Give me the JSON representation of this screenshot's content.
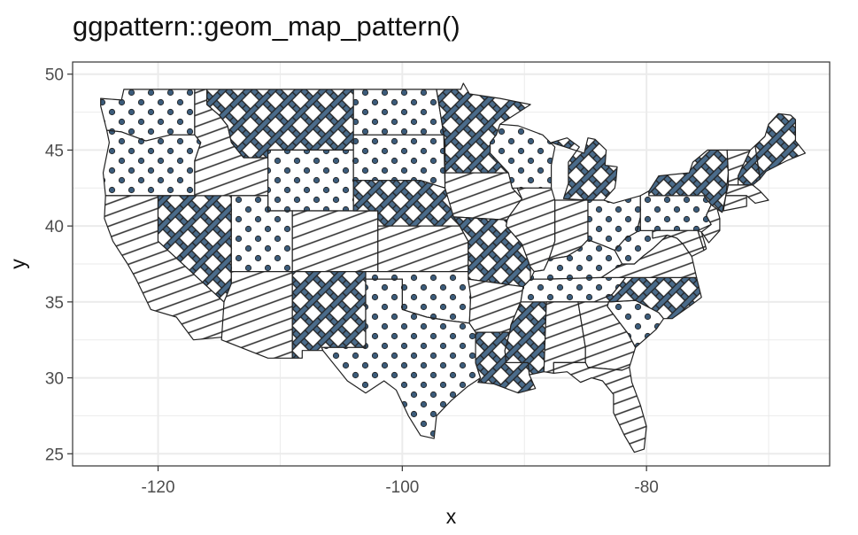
{
  "title": "ggpattern::geom_map_pattern()",
  "x_label": "x",
  "y_label": "y",
  "x_ticks": [
    {
      "value": -120,
      "label": "-120"
    },
    {
      "value": -100,
      "label": "-100"
    },
    {
      "value": -80,
      "label": "-80"
    }
  ],
  "y_ticks": [
    {
      "value": 25,
      "label": "25"
    },
    {
      "value": 30,
      "label": "30"
    },
    {
      "value": 35,
      "label": "35"
    },
    {
      "value": 40,
      "label": "40"
    },
    {
      "value": 45,
      "label": "45"
    },
    {
      "value": 50,
      "label": "50"
    }
  ],
  "x_range": [
    -127,
    -65
  ],
  "y_range": [
    24.2,
    50.8
  ],
  "grid": true,
  "colors": {
    "fill": "#ffffff",
    "pattern_fill": "#4a6b8a",
    "outline": "#222222",
    "panel_border": "#333333",
    "grid": "#ebebeb"
  },
  "patterns": [
    "stripe",
    "crosshatch",
    "circle",
    "none"
  ],
  "states": [
    {
      "name": "washington",
      "pattern": "circle"
    },
    {
      "name": "oregon",
      "pattern": "circle"
    },
    {
      "name": "california",
      "pattern": "stripe"
    },
    {
      "name": "nevada",
      "pattern": "crosshatch"
    },
    {
      "name": "idaho",
      "pattern": "stripe"
    },
    {
      "name": "montana",
      "pattern": "crosshatch"
    },
    {
      "name": "wyoming",
      "pattern": "circle"
    },
    {
      "name": "utah",
      "pattern": "circle"
    },
    {
      "name": "arizona",
      "pattern": "stripe"
    },
    {
      "name": "colorado",
      "pattern": "stripe"
    },
    {
      "name": "new mexico",
      "pattern": "crosshatch"
    },
    {
      "name": "north dakota",
      "pattern": "circle"
    },
    {
      "name": "south dakota",
      "pattern": "circle"
    },
    {
      "name": "nebraska",
      "pattern": "crosshatch"
    },
    {
      "name": "kansas",
      "pattern": "stripe"
    },
    {
      "name": "oklahoma",
      "pattern": "circle"
    },
    {
      "name": "texas",
      "pattern": "circle"
    },
    {
      "name": "minnesota",
      "pattern": "crosshatch"
    },
    {
      "name": "iowa",
      "pattern": "stripe"
    },
    {
      "name": "missouri",
      "pattern": "crosshatch"
    },
    {
      "name": "arkansas",
      "pattern": "stripe"
    },
    {
      "name": "louisiana",
      "pattern": "crosshatch"
    },
    {
      "name": "wisconsin",
      "pattern": "circle"
    },
    {
      "name": "illinois",
      "pattern": "stripe"
    },
    {
      "name": "mississippi",
      "pattern": "crosshatch"
    },
    {
      "name": "michigan",
      "pattern": "crosshatch"
    },
    {
      "name": "indiana",
      "pattern": "stripe"
    },
    {
      "name": "kentucky",
      "pattern": "circle"
    },
    {
      "name": "tennessee",
      "pattern": "circle"
    },
    {
      "name": "alabama",
      "pattern": "stripe"
    },
    {
      "name": "ohio",
      "pattern": "circle"
    },
    {
      "name": "georgia",
      "pattern": "stripe"
    },
    {
      "name": "florida",
      "pattern": "stripe"
    },
    {
      "name": "south carolina",
      "pattern": "circle"
    },
    {
      "name": "north carolina",
      "pattern": "crosshatch"
    },
    {
      "name": "virginia",
      "pattern": "stripe"
    },
    {
      "name": "west virginia",
      "pattern": "circle"
    },
    {
      "name": "pennsylvania",
      "pattern": "circle"
    },
    {
      "name": "new york",
      "pattern": "crosshatch"
    },
    {
      "name": "vermont",
      "pattern": "stripe"
    },
    {
      "name": "new hampshire",
      "pattern": "crosshatch"
    },
    {
      "name": "maine",
      "pattern": "crosshatch"
    },
    {
      "name": "massachusetts",
      "pattern": "stripe"
    },
    {
      "name": "connecticut",
      "pattern": "stripe"
    },
    {
      "name": "new jersey",
      "pattern": "stripe"
    },
    {
      "name": "maryland",
      "pattern": "stripe"
    },
    {
      "name": "delaware",
      "pattern": "stripe"
    }
  ]
}
